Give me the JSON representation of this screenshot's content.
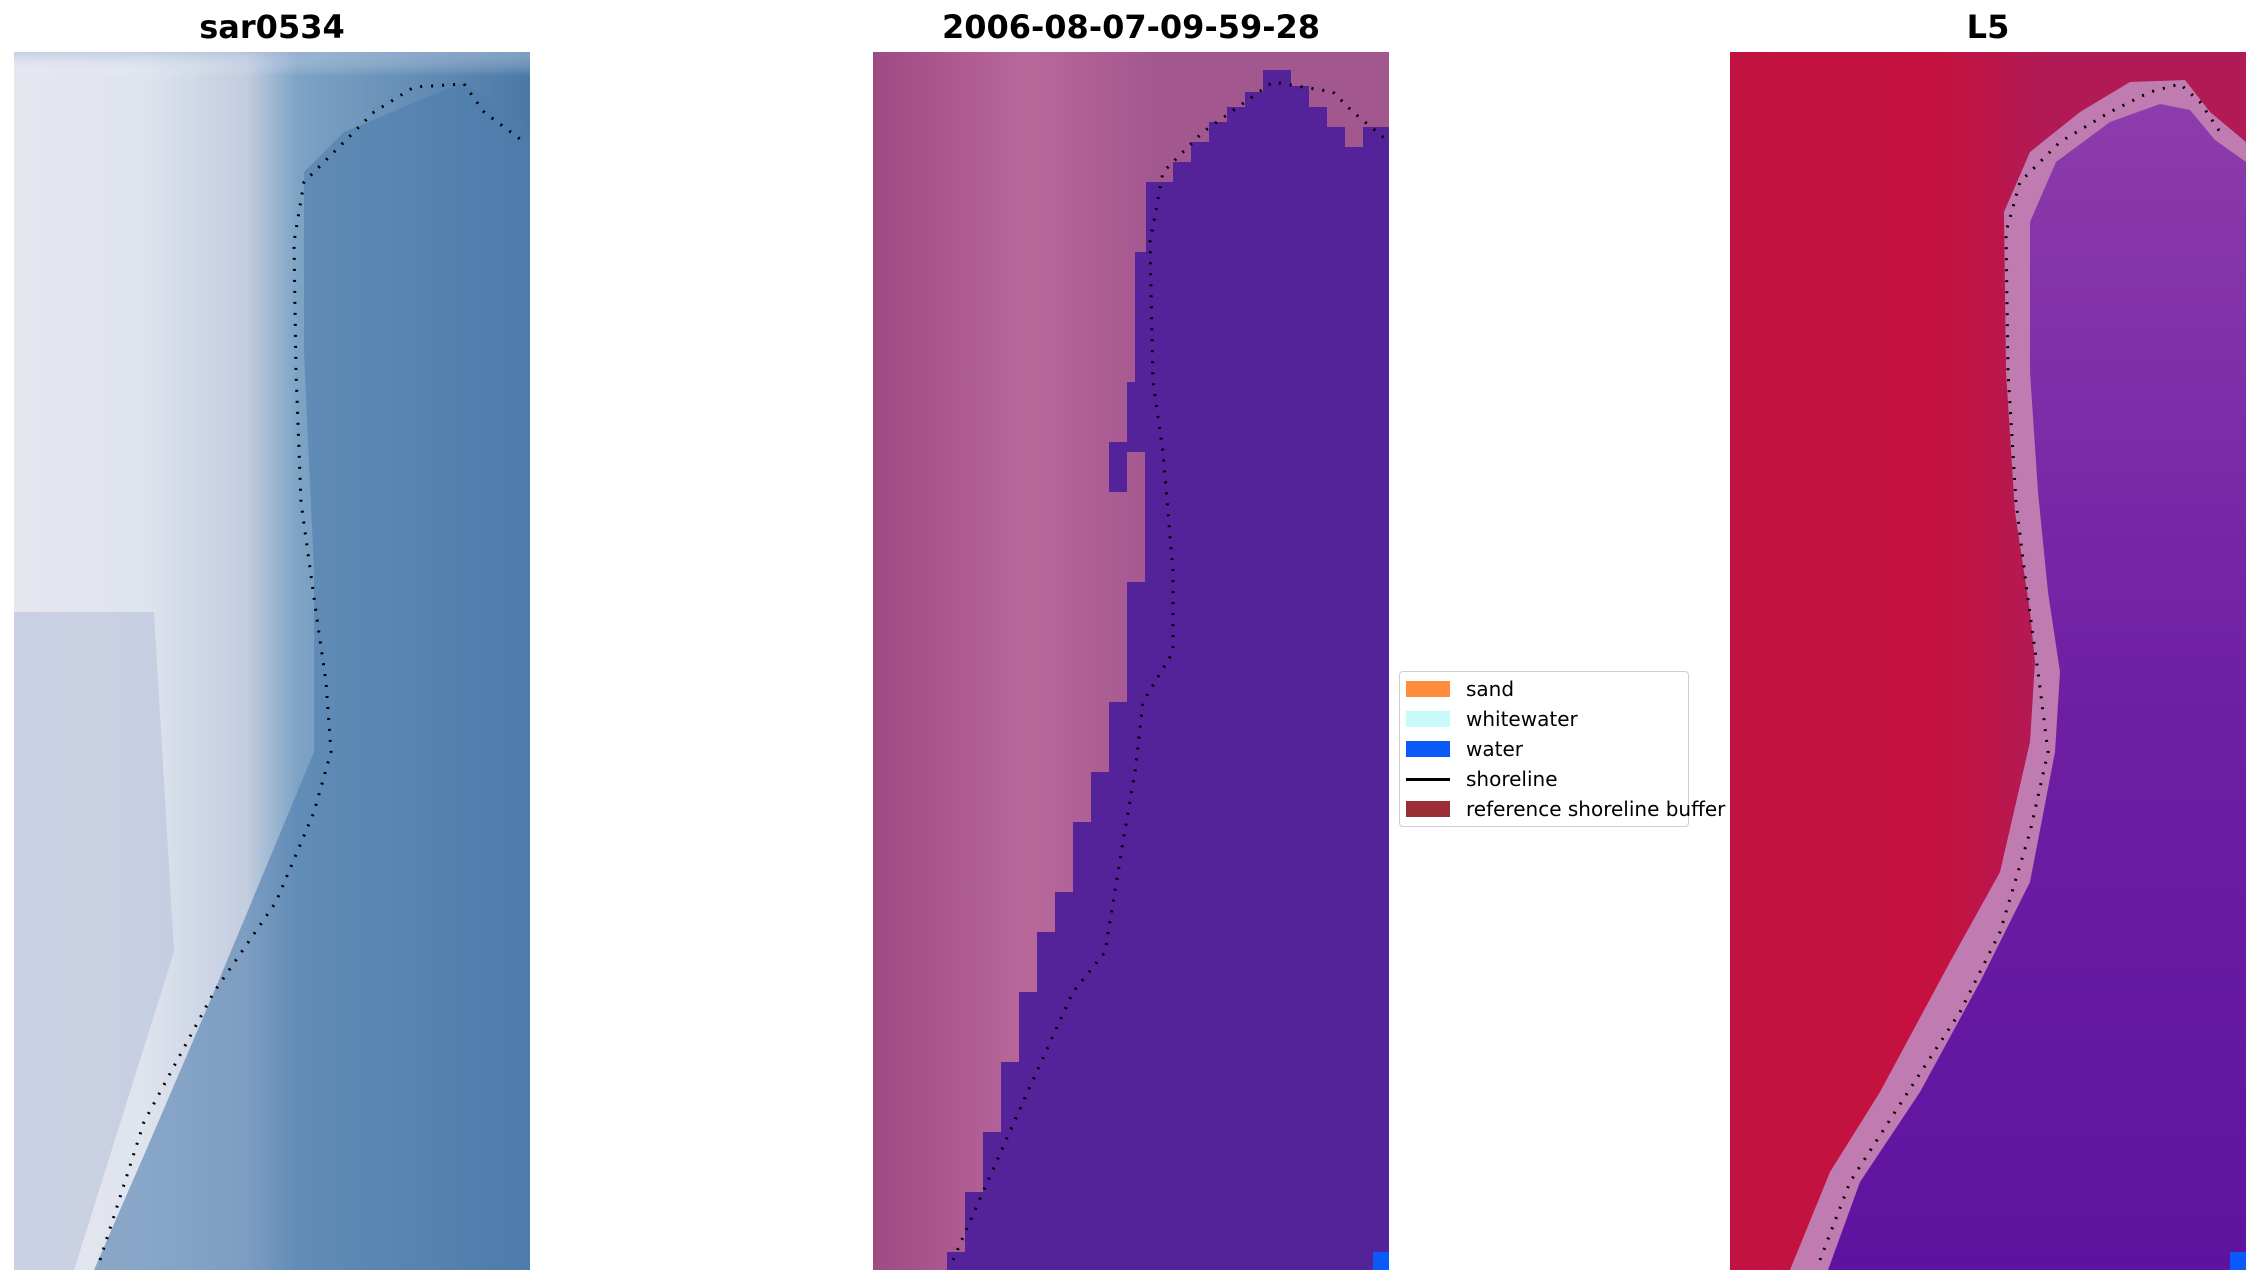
{
  "panels": [
    {
      "title": "sar0534",
      "kind": "rgb"
    },
    {
      "title": "2006-08-07-09-59-28",
      "kind": "classification"
    },
    {
      "title": "L5",
      "kind": "index"
    }
  ],
  "legend": {
    "items": [
      {
        "label": "sand",
        "color": "#ff8c3c",
        "type": "patch"
      },
      {
        "label": "whitewater",
        "color": "#c8fafa",
        "type": "patch"
      },
      {
        "label": "water",
        "color": "#0a5afa",
        "type": "patch"
      },
      {
        "label": "shoreline",
        "color": "#000000",
        "type": "line"
      },
      {
        "label": "reference shoreline buffer",
        "color": "#9b2d37",
        "type": "patch"
      }
    ]
  },
  "colors": {
    "water_rgb": "#4a78a8",
    "beach_rgb": "#e8e8f0",
    "class_land": "#a8508a",
    "class_water": "#552399",
    "index_land": "#c21340",
    "index_water": "#6e1fa0",
    "index_edge": "#c07bb0"
  }
}
